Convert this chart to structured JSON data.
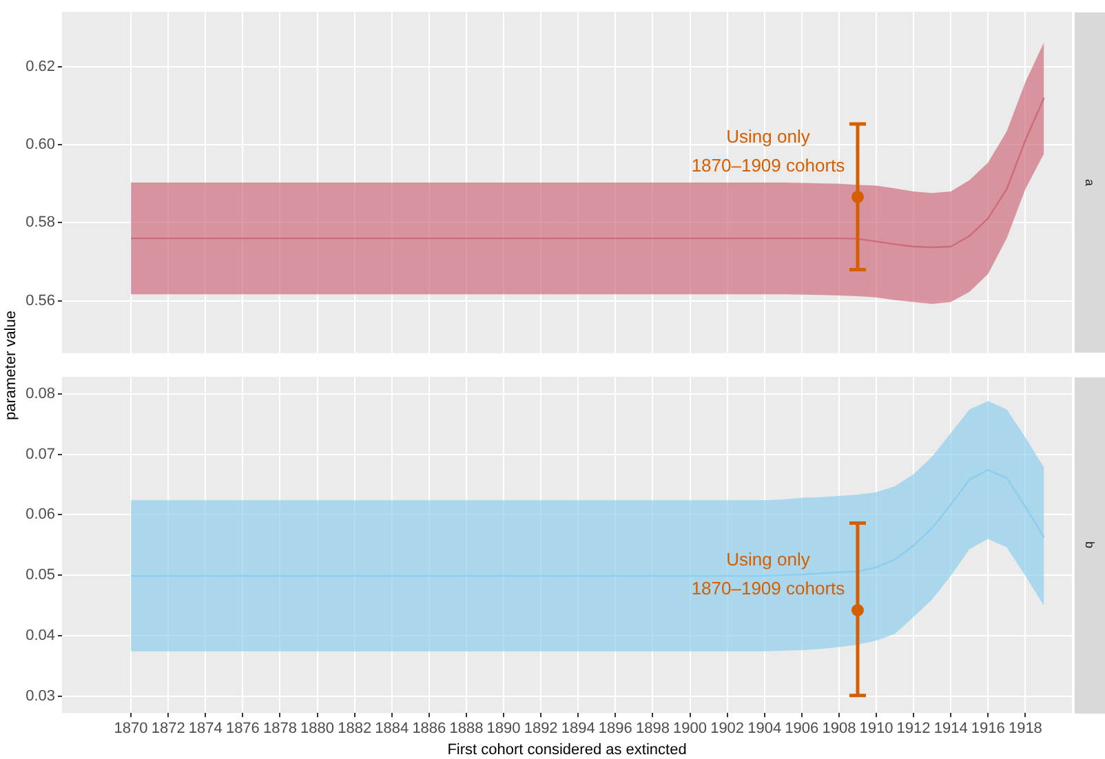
{
  "chart_data": [
    {
      "type": "line",
      "ylabel": "parameter value",
      "x": [
        1870,
        1871,
        1872,
        1873,
        1874,
        1875,
        1876,
        1877,
        1878,
        1879,
        1880,
        1881,
        1882,
        1883,
        1884,
        1885,
        1886,
        1887,
        1888,
        1889,
        1890,
        1891,
        1892,
        1893,
        1894,
        1895,
        1896,
        1897,
        1898,
        1899,
        1900,
        1901,
        1902,
        1903,
        1904,
        1905,
        1906,
        1907,
        1908,
        1909,
        1910,
        1911,
        1912,
        1913,
        1914,
        1915,
        1916,
        1917,
        1918,
        1919
      ],
      "series": [
        {
          "type": "line",
          "color": "#cc6677",
          "values": [
            0.576,
            0.576,
            0.576,
            0.576,
            0.576,
            0.576,
            0.576,
            0.576,
            0.576,
            0.576,
            0.576,
            0.576,
            0.576,
            0.576,
            0.576,
            0.576,
            0.576,
            0.576,
            0.576,
            0.576,
            0.576,
            0.576,
            0.576,
            0.576,
            0.576,
            0.576,
            0.576,
            0.576,
            0.576,
            0.576,
            0.576,
            0.576,
            0.576,
            0.576,
            0.576,
            0.576,
            0.576,
            0.576,
            0.576,
            0.5759,
            0.5752,
            0.5745,
            0.5739,
            0.5737,
            0.5739,
            0.5766,
            0.5811,
            0.5886,
            0.6011,
            0.612
          ],
          "lower": [
            0.5617,
            0.5617,
            0.5617,
            0.5617,
            0.5617,
            0.5617,
            0.5617,
            0.5617,
            0.5617,
            0.5617,
            0.5617,
            0.5617,
            0.5617,
            0.5617,
            0.5617,
            0.5617,
            0.5617,
            0.5617,
            0.5617,
            0.5617,
            0.5617,
            0.5617,
            0.5617,
            0.5617,
            0.5617,
            0.5617,
            0.5617,
            0.5617,
            0.5617,
            0.5617,
            0.5617,
            0.5617,
            0.5617,
            0.5617,
            0.5617,
            0.5617,
            0.5616,
            0.5615,
            0.5614,
            0.5612,
            0.5609,
            0.5602,
            0.5597,
            0.5592,
            0.5597,
            0.5623,
            0.5669,
            0.576,
            0.5886,
            0.5977
          ],
          "upper": [
            0.5903,
            0.5903,
            0.5903,
            0.5903,
            0.5903,
            0.5903,
            0.5903,
            0.5903,
            0.5903,
            0.5903,
            0.5903,
            0.5903,
            0.5903,
            0.5903,
            0.5903,
            0.5903,
            0.5903,
            0.5903,
            0.5903,
            0.5903,
            0.5903,
            0.5903,
            0.5903,
            0.5903,
            0.5903,
            0.5903,
            0.5903,
            0.5903,
            0.5903,
            0.5903,
            0.5903,
            0.5903,
            0.5903,
            0.5903,
            0.5903,
            0.5903,
            0.5902,
            0.5901,
            0.59,
            0.5897,
            0.5895,
            0.5888,
            0.588,
            0.5876,
            0.588,
            0.5909,
            0.5954,
            0.6034,
            0.616,
            0.6262
          ]
        },
        {
          "type": "scatter",
          "color": "#d55e00",
          "x": [
            1909
          ],
          "values": [
            0.5866
          ],
          "errors": [
            [
              0.568,
              0.6053
            ]
          ]
        }
      ],
      "annotations": [
        "a",
        {
          "text": "Using only\n1870–1909 cohorts",
          "x": 1909,
          "y": 0.598
        }
      ],
      "xlim": [
        1866.3,
        1920.5
      ],
      "ylim": [
        0.5466,
        0.634
      ],
      "xticks": [
        1870,
        1872,
        1874,
        1876,
        1878,
        1880,
        1882,
        1884,
        1886,
        1888,
        1890,
        1892,
        1894,
        1896,
        1898,
        1900,
        1902,
        1904,
        1906,
        1908,
        1910,
        1912,
        1914,
        1916,
        1918
      ],
      "yticks": [
        0.56,
        0.58,
        {
          "value": 0.6,
          "label": "0.60"
        },
        0.62
      ],
      "tick_labels": "y",
      "grid": true,
      "legend": false
    },
    {
      "type": "line",
      "xlabel": "First cohort considered as extincted",
      "x": [
        1870,
        1871,
        1872,
        1873,
        1874,
        1875,
        1876,
        1877,
        1878,
        1879,
        1880,
        1881,
        1882,
        1883,
        1884,
        1885,
        1886,
        1887,
        1888,
        1889,
        1890,
        1891,
        1892,
        1893,
        1894,
        1895,
        1896,
        1897,
        1898,
        1899,
        1900,
        1901,
        1902,
        1903,
        1904,
        1905,
        1906,
        1907,
        1908,
        1909,
        1910,
        1911,
        1912,
        1913,
        1914,
        1915,
        1916,
        1917,
        1918,
        1919
      ],
      "series": [
        {
          "type": "line",
          "color": "#88ccee",
          "values": [
            0.0499,
            0.0499,
            0.0499,
            0.0499,
            0.0499,
            0.0499,
            0.0499,
            0.0499,
            0.0499,
            0.0499,
            0.0499,
            0.0499,
            0.0499,
            0.0499,
            0.0499,
            0.0499,
            0.0499,
            0.0499,
            0.0499,
            0.0499,
            0.0499,
            0.0499,
            0.0499,
            0.0499,
            0.0499,
            0.0499,
            0.0499,
            0.0499,
            0.0499,
            0.0499,
            0.0499,
            0.0499,
            0.0499,
            0.0499,
            0.0499,
            0.05,
            0.0501,
            0.0503,
            0.0505,
            0.0506,
            0.0513,
            0.0526,
            0.0549,
            0.0578,
            0.0617,
            0.0658,
            0.0674,
            0.0661,
            0.0613,
            0.0563
          ],
          "lower": [
            0.0374,
            0.0374,
            0.0374,
            0.0374,
            0.0374,
            0.0374,
            0.0374,
            0.0374,
            0.0374,
            0.0374,
            0.0374,
            0.0374,
            0.0374,
            0.0374,
            0.0374,
            0.0374,
            0.0374,
            0.0374,
            0.0374,
            0.0374,
            0.0374,
            0.0374,
            0.0374,
            0.0374,
            0.0374,
            0.0374,
            0.0374,
            0.0374,
            0.0374,
            0.0374,
            0.0374,
            0.0374,
            0.0374,
            0.0374,
            0.0374,
            0.0375,
            0.0376,
            0.0378,
            0.0381,
            0.0385,
            0.0392,
            0.0403,
            0.0431,
            0.046,
            0.0499,
            0.0543,
            0.056,
            0.0546,
            0.0499,
            0.0449
          ],
          "upper": [
            0.0624,
            0.0624,
            0.0624,
            0.0624,
            0.0624,
            0.0624,
            0.0624,
            0.0624,
            0.0624,
            0.0624,
            0.0624,
            0.0624,
            0.0624,
            0.0624,
            0.0624,
            0.0624,
            0.0624,
            0.0624,
            0.0624,
            0.0624,
            0.0624,
            0.0624,
            0.0624,
            0.0624,
            0.0624,
            0.0624,
            0.0624,
            0.0624,
            0.0624,
            0.0624,
            0.0624,
            0.0624,
            0.0624,
            0.0624,
            0.0624,
            0.0625,
            0.0628,
            0.0629,
            0.0631,
            0.0633,
            0.0637,
            0.0647,
            0.0667,
            0.0696,
            0.0735,
            0.0774,
            0.0788,
            0.0774,
            0.0728,
            0.0678
          ]
        },
        {
          "type": "scatter",
          "color": "#d55e00",
          "x": [
            1909
          ],
          "values": [
            0.0442
          ],
          "errors": [
            [
              0.0301,
              0.0586
            ]
          ]
        }
      ],
      "annotations": [
        "b",
        {
          "text": "Using only\n1870–1909 cohorts",
          "x": 1909,
          "y": 0.05
        }
      ],
      "xlim": [
        1866.3,
        1920.5
      ],
      "ylim": [
        0.0272,
        0.0828
      ],
      "xticks": [
        1870,
        1872,
        1874,
        1876,
        1878,
        1880,
        1882,
        1884,
        1886,
        1888,
        1890,
        1892,
        1894,
        1896,
        1898,
        1900,
        1902,
        1904,
        1906,
        1908,
        1910,
        1912,
        1914,
        1916,
        1918
      ],
      "yticks": [
        0.03,
        0.04,
        0.05,
        0.06,
        0.07,
        0.08
      ],
      "grid": true,
      "legend": false
    }
  ]
}
